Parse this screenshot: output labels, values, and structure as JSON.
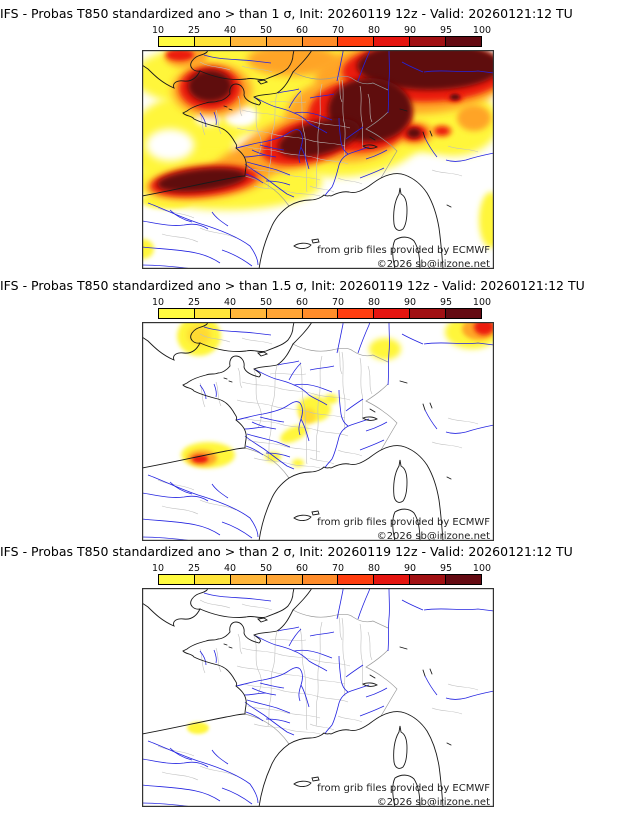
{
  "colorbar": {
    "ticks": [
      "10",
      "25",
      "40",
      "50",
      "60",
      "70",
      "80",
      "90",
      "95",
      "100"
    ],
    "segment_colors": [
      "#fffb40",
      "#ffe53a",
      "#ffb63a",
      "#ffa435",
      "#ff8c2a",
      "#ff3d0f",
      "#e51510",
      "#a11013",
      "#640a12"
    ]
  },
  "field_colors": {
    "p10": "#fff63a",
    "p25": "#ffda32",
    "p60": "#ffa428",
    "p80": "#ec1a0c",
    "p95": "#5f0811",
    "mask": "#ffffff"
  },
  "map_line_colors": {
    "coast": "#1a1a1a",
    "rivers": "#2424e0",
    "departments": "#bfbfbf",
    "borders": "#999999"
  },
  "panels": [
    {
      "id": "sigma-1",
      "title": "IFS - Probas T850  standardized ano > than 1 σ, Init: 20260119 12z - Valid: 20260121:12 TU",
      "attribution1": "from grib files provided by ECMWF",
      "attribution2": "©2026 sb@irizone.net",
      "field": [
        [
          "p10",
          176,
          26,
          186,
          44,
          0,
          4
        ],
        [
          "p10",
          70,
          92,
          85,
          52,
          0,
          4
        ],
        [
          "p10",
          85,
          132,
          95,
          28,
          0,
          4
        ],
        [
          "p10",
          195,
          85,
          85,
          42,
          0,
          4
        ],
        [
          "p10",
          312,
          72,
          45,
          34,
          0,
          4
        ],
        [
          "p10",
          349,
          170,
          12,
          28,
          0,
          3
        ],
        [
          "p10",
          25,
          151,
          26,
          8,
          0,
          2
        ],
        [
          "p10",
          1,
          199,
          11,
          10,
          0,
          2
        ],
        [
          "p10",
          278,
          86,
          45,
          16,
          0,
          4
        ],
        [
          "mask",
          116,
          99,
          25,
          16,
          0,
          4
        ],
        [
          "mask",
          99,
          66,
          17,
          11,
          0,
          3
        ],
        [
          "mask",
          66,
          68,
          13,
          8,
          0,
          3
        ],
        [
          "mask",
          28,
          95,
          24,
          16,
          0,
          4
        ],
        [
          "p60",
          268,
          28,
          95,
          36,
          0,
          4
        ],
        [
          "p60",
          205,
          70,
          62,
          42,
          0,
          4
        ],
        [
          "p60",
          158,
          92,
          62,
          26,
          -15,
          4
        ],
        [
          "p60",
          108,
          114,
          48,
          20,
          -25,
          4
        ],
        [
          "p60",
          70,
          40,
          40,
          27,
          0,
          4
        ],
        [
          "p60",
          64,
          132,
          60,
          17,
          -6,
          4
        ],
        [
          "p60",
          272,
          83,
          20,
          12,
          0,
          3
        ],
        [
          "p60",
          300,
          81,
          11,
          7,
          0,
          2
        ],
        [
          "p60",
          150,
          10,
          45,
          16,
          0,
          4
        ],
        [
          "p60",
          332,
          68,
          17,
          13,
          0,
          3
        ],
        [
          "p60",
          44,
          7,
          22,
          11,
          0,
          3
        ],
        [
          "p80",
          282,
          22,
          82,
          30,
          0,
          3
        ],
        [
          "p80",
          218,
          66,
          52,
          36,
          0,
          3
        ],
        [
          "p80",
          170,
          90,
          52,
          22,
          -15,
          3
        ],
        [
          "p80",
          68,
          38,
          31,
          22,
          0,
          3
        ],
        [
          "p80",
          62,
          131,
          54,
          15,
          -6,
          3
        ],
        [
          "p80",
          272,
          83,
          13,
          8,
          0,
          2
        ],
        [
          "p80",
          300,
          81,
          7,
          4,
          0,
          2
        ],
        [
          "p80",
          313,
          47,
          8,
          5,
          0,
          2
        ],
        [
          "p80",
          38,
          5,
          14,
          6,
          0,
          2
        ],
        [
          "p95",
          287,
          16,
          72,
          24,
          0,
          3
        ],
        [
          "p95",
          228,
          60,
          42,
          32,
          0,
          3
        ],
        [
          "p95",
          177,
          88,
          42,
          17,
          -15,
          3
        ],
        [
          "p95",
          68,
          36,
          22,
          16,
          0,
          3
        ],
        [
          "p95",
          60,
          130,
          45,
          11,
          -6,
          3
        ],
        [
          "p95",
          272,
          83,
          7,
          5,
          0,
          2
        ],
        [
          "p95",
          313,
          47,
          5,
          3,
          0,
          1
        ]
      ]
    },
    {
      "id": "sigma-1.5",
      "title": "IFS - Probas T850  standardized ano > than 1.5 σ, Init: 20260119 12z - Valid: 20260121:12 TU",
      "attribution1": "from grib files provided by ECMWF",
      "attribution2": "©2026 sb@irizone.net",
      "field": [
        [
          "p10",
          57,
          14,
          22,
          20,
          0,
          2
        ],
        [
          "p10",
          243,
          27,
          16,
          11,
          0,
          3
        ],
        [
          "p10",
          330,
          10,
          27,
          17,
          0,
          3
        ],
        [
          "p10",
          172,
          87,
          17,
          13,
          0,
          2
        ],
        [
          "p10",
          189,
          77,
          7,
          5,
          0,
          2
        ],
        [
          "p10",
          152,
          112,
          15,
          7,
          -25,
          2
        ],
        [
          "p10",
          66,
          133,
          27,
          13,
          0,
          2
        ],
        [
          "p10",
          131,
          135,
          8,
          5,
          0,
          2
        ],
        [
          "p10",
          156,
          141,
          6,
          4,
          0,
          2
        ],
        [
          "p25",
          57,
          13,
          12,
          10,
          0,
          3
        ],
        [
          "p25",
          166,
          94,
          8,
          8,
          0,
          2
        ],
        [
          "p60",
          337,
          7,
          17,
          11,
          0,
          2
        ],
        [
          "p60",
          60,
          136,
          15,
          8,
          0,
          2
        ],
        [
          "p80",
          342,
          5,
          10,
          8,
          0,
          2
        ],
        [
          "p80",
          58,
          137,
          8,
          4,
          0,
          1
        ]
      ]
    },
    {
      "id": "sigma-2",
      "title": "IFS - Probas T850  standardized ano > than 2 σ, Init: 20260119 12z - Valid: 20260121:12 TU",
      "attribution1": "from grib files provided by ECMWF",
      "attribution2": "©2026 sb@irizone.net",
      "field": [
        [
          "p10",
          56,
          140,
          11,
          6,
          0,
          1
        ]
      ]
    }
  ]
}
